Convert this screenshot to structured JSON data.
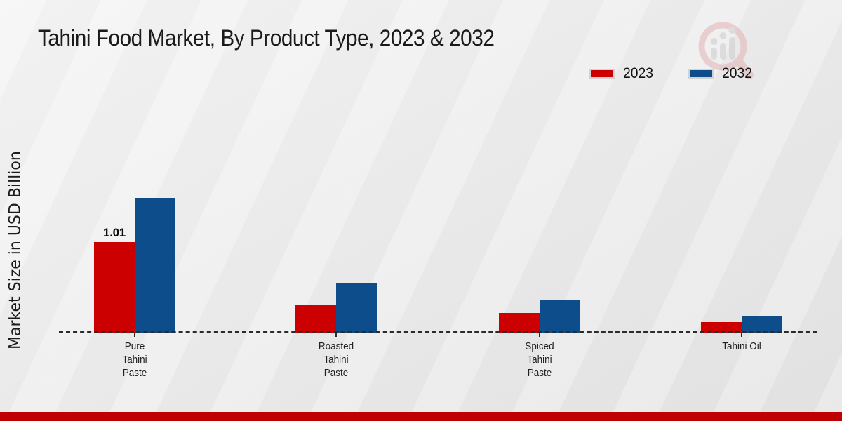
{
  "title": "Tahini Food Market, By Product Type, 2023 & 2032",
  "y_axis_label": "Market Size in USD Billion",
  "legend": [
    {
      "label": "2023",
      "color": "#cc0000"
    },
    {
      "label": "2032",
      "color": "#0e4d8c"
    }
  ],
  "chart_data": {
    "type": "bar",
    "title": "Tahini Food Market, By Product Type, 2023 & 2032",
    "xlabel": "",
    "ylabel": "Market Size in USD Billion",
    "categories": [
      "Pure Tahini Paste",
      "Roasted Tahini Paste",
      "Spiced Tahini Paste",
      "Tahini Oil"
    ],
    "category_lines": [
      [
        "Pure",
        "Tahini",
        "Paste"
      ],
      [
        "Roasted",
        "Tahini",
        "Paste"
      ],
      [
        "Spiced",
        "Tahini",
        "Paste"
      ],
      [
        "Tahini Oil"
      ]
    ],
    "series": [
      {
        "name": "2023",
        "color": "#cc0000",
        "values": [
          1.01,
          0.31,
          0.22,
          0.12
        ]
      },
      {
        "name": "2032",
        "color": "#0e4d8c",
        "values": [
          1.5,
          0.55,
          0.36,
          0.19
        ]
      }
    ],
    "annotations": [
      {
        "series": "2023",
        "category": "Pure Tahini Paste",
        "text": "1.01"
      }
    ],
    "ylim": [
      0,
      1.6
    ],
    "grid": false,
    "legend_position": "top-right",
    "x_axis_style": "dashed-baseline-only"
  },
  "watermark": {
    "name": "market-research-logo"
  },
  "footer": {
    "accent_color": "#bf0101"
  }
}
